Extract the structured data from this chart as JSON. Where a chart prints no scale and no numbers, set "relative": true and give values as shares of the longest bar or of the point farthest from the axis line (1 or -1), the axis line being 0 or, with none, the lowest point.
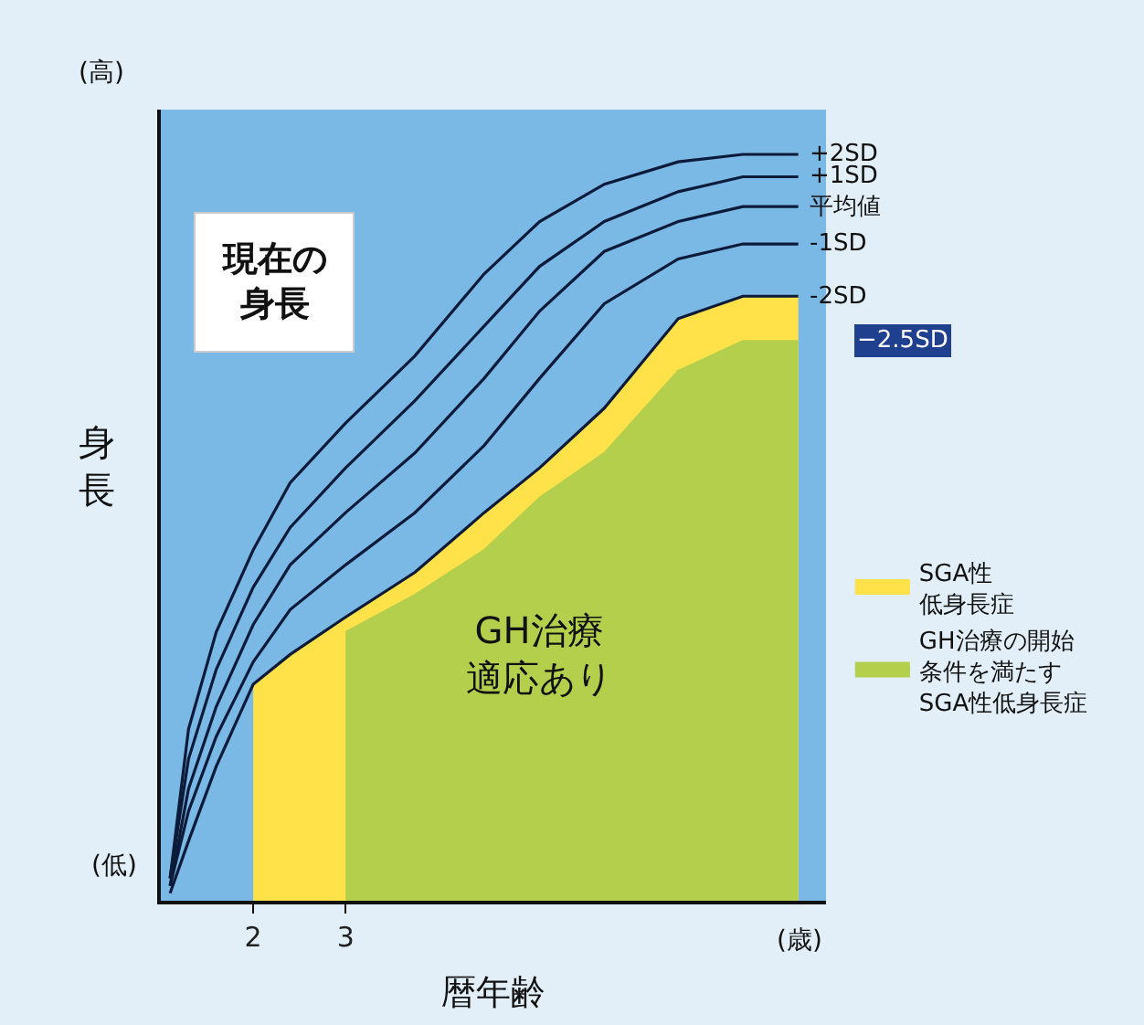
{
  "chart_data": {
    "type": "line",
    "relative": true,
    "xlabel": "暦年齢",
    "ylabel": "身長",
    "xlim": [
      1.0,
      8.2
    ],
    "xticks": [
      2,
      3
    ],
    "tick_labels": "x",
    "grid": false,
    "legend": "right",
    "series": [
      {
        "name": "SGA性低身長症",
        "type": "area",
        "color": "#ffe14a",
        "x": [
          2,
          2.4,
          3,
          3.75,
          4.5,
          5.1,
          5.8,
          6.6,
          7.3,
          7.9
        ],
        "values": [
          0.29,
          0.33,
          0.38,
          0.44,
          0.52,
          0.58,
          0.66,
          0.78,
          0.81,
          0.81
        ]
      },
      {
        "name": "GH治療の開始条件を満たすSGA性低身長症",
        "type": "area",
        "color": "#b3cf4c",
        "x": [
          3,
          3.75,
          4.5,
          5.1,
          5.8,
          6.6,
          7.3,
          7.9
        ],
        "values": [
          0.36,
          0.41,
          0.47,
          0.54,
          0.6,
          0.71,
          0.75,
          0.75
        ]
      },
      {
        "name": "+2SD",
        "color": "#0d1b3a",
        "x": [
          1.1,
          1.3,
          1.6,
          2,
          2.4,
          3,
          3.75,
          4.5,
          5.1,
          5.8,
          6.6,
          7.3,
          7.9
        ],
        "values": [
          0.03,
          0.23,
          0.36,
          0.47,
          0.56,
          0.64,
          0.73,
          0.84,
          0.91,
          0.96,
          0.99,
          1.0,
          1.0
        ]
      },
      {
        "name": "+1SD",
        "color": "#0d1b3a",
        "x": [
          1.1,
          1.3,
          1.6,
          2,
          2.4,
          3,
          3.75,
          4.5,
          5.1,
          5.8,
          6.6,
          7.3,
          7.9
        ],
        "values": [
          0.03,
          0.19,
          0.31,
          0.42,
          0.5,
          0.58,
          0.67,
          0.77,
          0.85,
          0.91,
          0.95,
          0.97,
          0.97
        ]
      },
      {
        "name": "平均値",
        "color": "#0d1b3a",
        "x": [
          1.1,
          1.3,
          1.6,
          2,
          2.4,
          3,
          3.75,
          4.5,
          5.1,
          5.8,
          6.6,
          7.3,
          7.9
        ],
        "values": [
          0.02,
          0.15,
          0.26,
          0.37,
          0.45,
          0.52,
          0.6,
          0.7,
          0.79,
          0.87,
          0.91,
          0.93,
          0.93
        ]
      },
      {
        "name": "-1SD",
        "color": "#0d1b3a",
        "x": [
          1.1,
          1.3,
          1.6,
          2,
          2.4,
          3,
          3.75,
          4.5,
          5.1,
          5.8,
          6.6,
          7.3,
          7.9
        ],
        "values": [
          0.02,
          0.12,
          0.22,
          0.32,
          0.39,
          0.45,
          0.52,
          0.61,
          0.7,
          0.8,
          0.86,
          0.88,
          0.88
        ]
      },
      {
        "name": "-2SD",
        "color": "#0d1b3a",
        "x": [
          1.1,
          1.3,
          1.6,
          2,
          2.4,
          3,
          3.75,
          4.5,
          5.1,
          5.8,
          6.6,
          7.3,
          7.9
        ],
        "values": [
          0.01,
          0.08,
          0.18,
          0.29,
          0.33,
          0.38,
          0.44,
          0.52,
          0.58,
          0.66,
          0.78,
          0.81,
          0.81
        ]
      }
    ],
    "annotations": [
      "(高)",
      "現在の身長",
      "(低)",
      "(歳)",
      "GH治療適応あり",
      {
        "text": "−2.5SD",
        "x": 7.9,
        "y": 0.75
      }
    ]
  }
}
